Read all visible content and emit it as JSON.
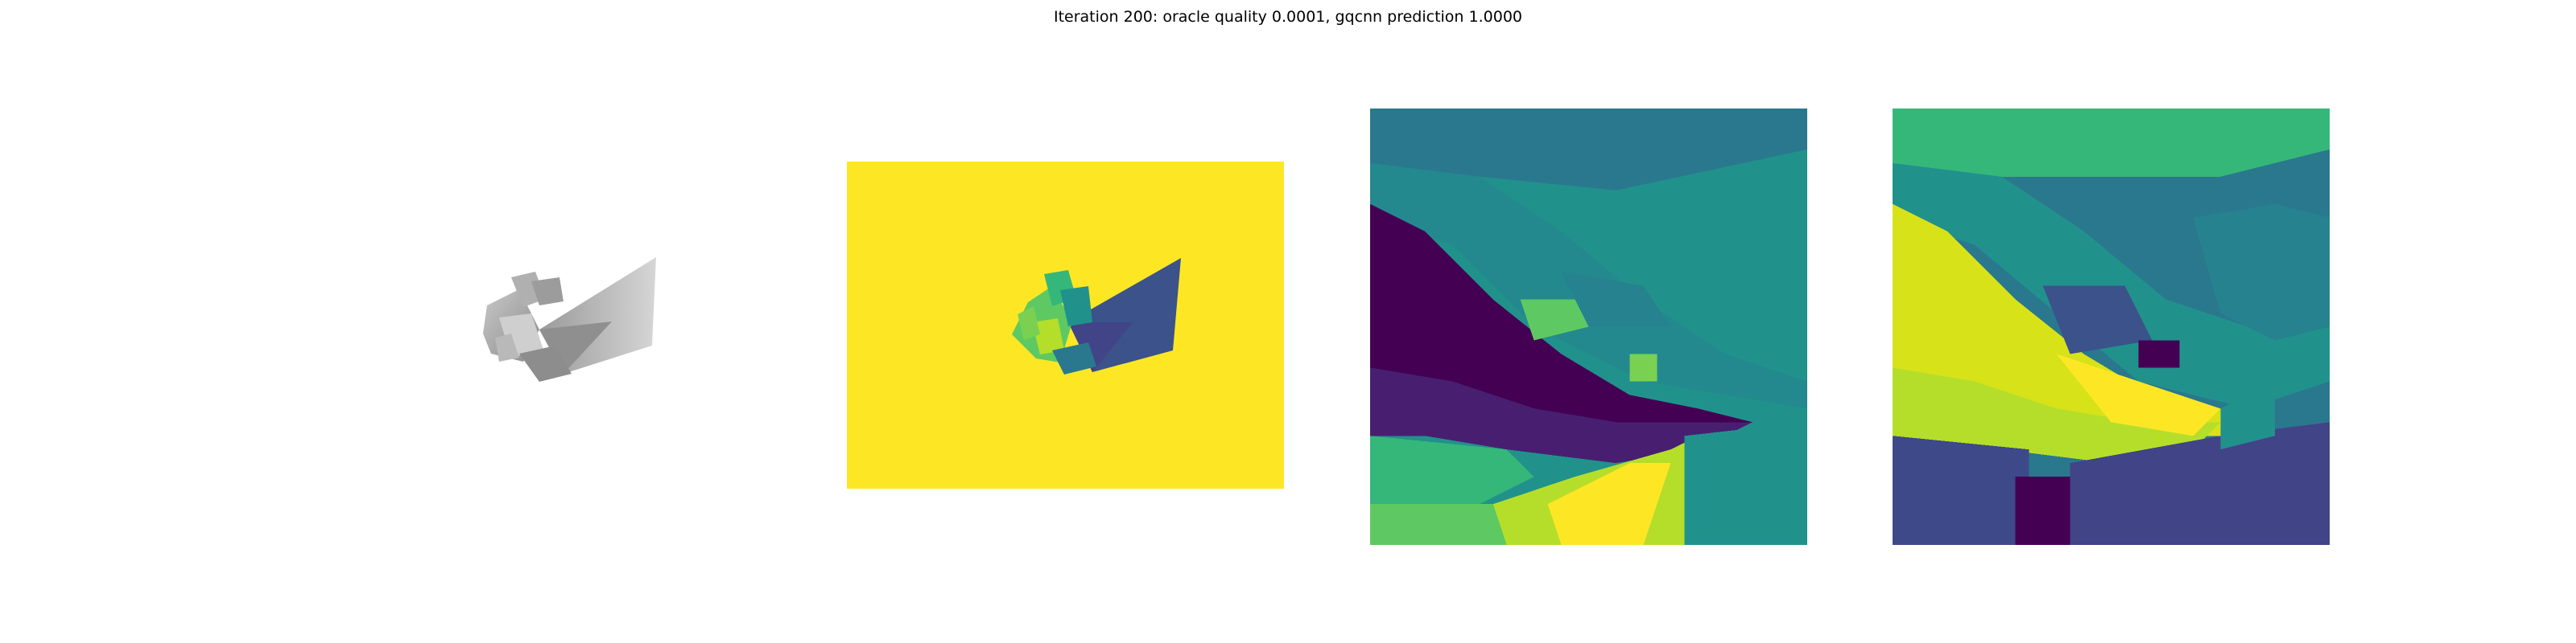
{
  "figure": {
    "title": "Iteration 200: oracle quality 0.0001, gqcnn prediction 1.0000"
  },
  "panels": [
    {
      "id": "rendered-object",
      "kind": "grayscale render of object"
    },
    {
      "id": "depth-image",
      "kind": "depth image"
    },
    {
      "id": "depth-crop-1",
      "kind": "cropped depth patch"
    },
    {
      "id": "depth-crop-2",
      "kind": "cropped depth patch"
    }
  ],
  "colors": {
    "viridis_yellow": "#fde725",
    "viridis_teal": "#21918c",
    "viridis_dark": "#440154",
    "viridis_blue": "#3b528b",
    "viridis_green": "#5ec962",
    "viridis_lime": "#b5de2b",
    "render_gray": "#a6a6a6"
  }
}
